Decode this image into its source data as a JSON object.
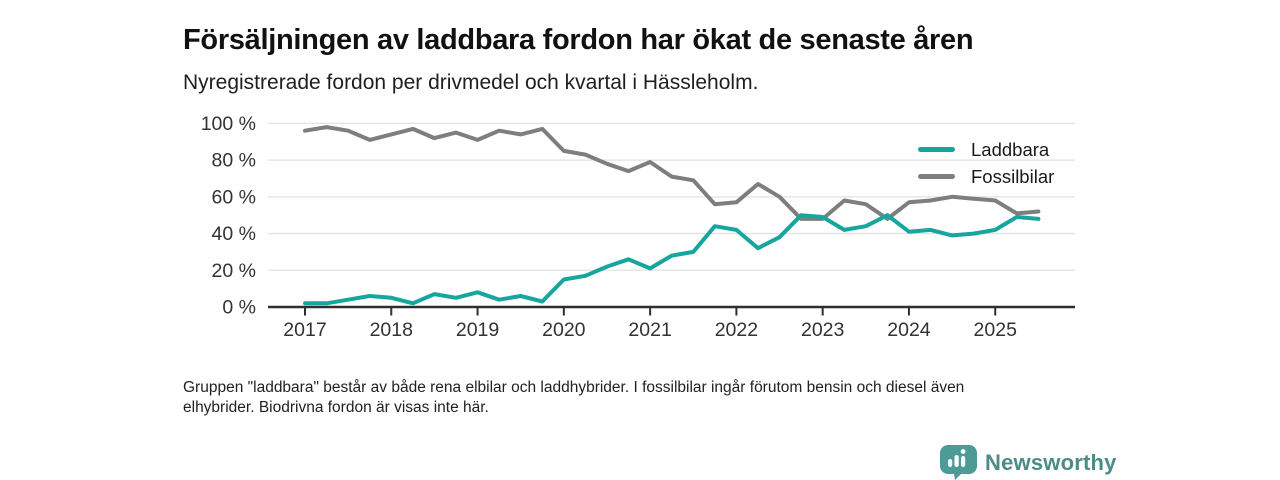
{
  "header": {
    "title": "Försäljningen av laddbara fordon har ökat de senaste åren",
    "subtitle": "Nyregistrerade fordon per drivmedel och kvartal i Hässleholm."
  },
  "chart_data": {
    "type": "line",
    "x_unit": "quarter",
    "x": [
      "2017 Q1",
      "2017 Q2",
      "2017 Q3",
      "2017 Q4",
      "2018 Q1",
      "2018 Q2",
      "2018 Q3",
      "2018 Q4",
      "2019 Q1",
      "2019 Q2",
      "2019 Q3",
      "2019 Q4",
      "2020 Q1",
      "2020 Q2",
      "2020 Q3",
      "2020 Q4",
      "2021 Q1",
      "2021 Q2",
      "2021 Q3",
      "2021 Q4",
      "2022 Q1",
      "2022 Q2",
      "2022 Q3",
      "2022 Q4",
      "2023 Q1",
      "2023 Q2",
      "2023 Q3",
      "2023 Q4",
      "2024 Q1",
      "2024 Q2",
      "2024 Q3",
      "2024 Q4",
      "2025 Q1",
      "2025 Q2",
      "2025 Q3"
    ],
    "x_tick_labels": [
      "2017",
      "2018",
      "2019",
      "2020",
      "2021",
      "2022",
      "2023",
      "2024",
      "2025"
    ],
    "y_tick_labels": [
      "0 %",
      "20 %",
      "40 %",
      "60 %",
      "80 %",
      "100 %"
    ],
    "y_ticks": [
      0,
      20,
      40,
      60,
      80,
      100
    ],
    "ylim": [
      0,
      100
    ],
    "unit": "%",
    "grid": true,
    "legend_position": "right-top-inside",
    "series": [
      {
        "name": "Fossilbilar",
        "color": "#7e7e7e",
        "values": [
          96,
          98,
          96,
          91,
          94,
          97,
          92,
          95,
          91,
          96,
          94,
          97,
          85,
          83,
          78,
          74,
          79,
          71,
          69,
          56,
          57,
          67,
          60,
          48,
          48,
          58,
          56,
          48,
          57,
          58,
          60,
          59,
          58,
          51,
          52
        ]
      },
      {
        "name": "Laddbara",
        "color": "#16a69e",
        "values": [
          2,
          2,
          4,
          6,
          5,
          2,
          7,
          5,
          8,
          4,
          6,
          3,
          15,
          17,
          22,
          26,
          21,
          28,
          30,
          44,
          42,
          32,
          38,
          50,
          49,
          42,
          44,
          50,
          41,
          42,
          39,
          40,
          42,
          49,
          48
        ]
      }
    ]
  },
  "legend": {
    "items": [
      {
        "label": "Laddbara",
        "color": "#16a69e"
      },
      {
        "label": "Fossilbilar",
        "color": "#7e7e7e"
      }
    ]
  },
  "footnote": {
    "text": "Gruppen \"laddbara\" består av både rena elbilar och laddhybrider. I fossilbilar ingår förutom bensin och diesel även\nelhybrider. Biodrivna fordon är visas inte här."
  },
  "logo": {
    "brand": "Newsworthy",
    "badge_color": "#4d9b96",
    "text_color": "#4d8b89"
  },
  "style": {
    "axis_color": "#2f2f2f",
    "grid_color": "#e2e2e2",
    "tick_label_color": "#333333"
  }
}
